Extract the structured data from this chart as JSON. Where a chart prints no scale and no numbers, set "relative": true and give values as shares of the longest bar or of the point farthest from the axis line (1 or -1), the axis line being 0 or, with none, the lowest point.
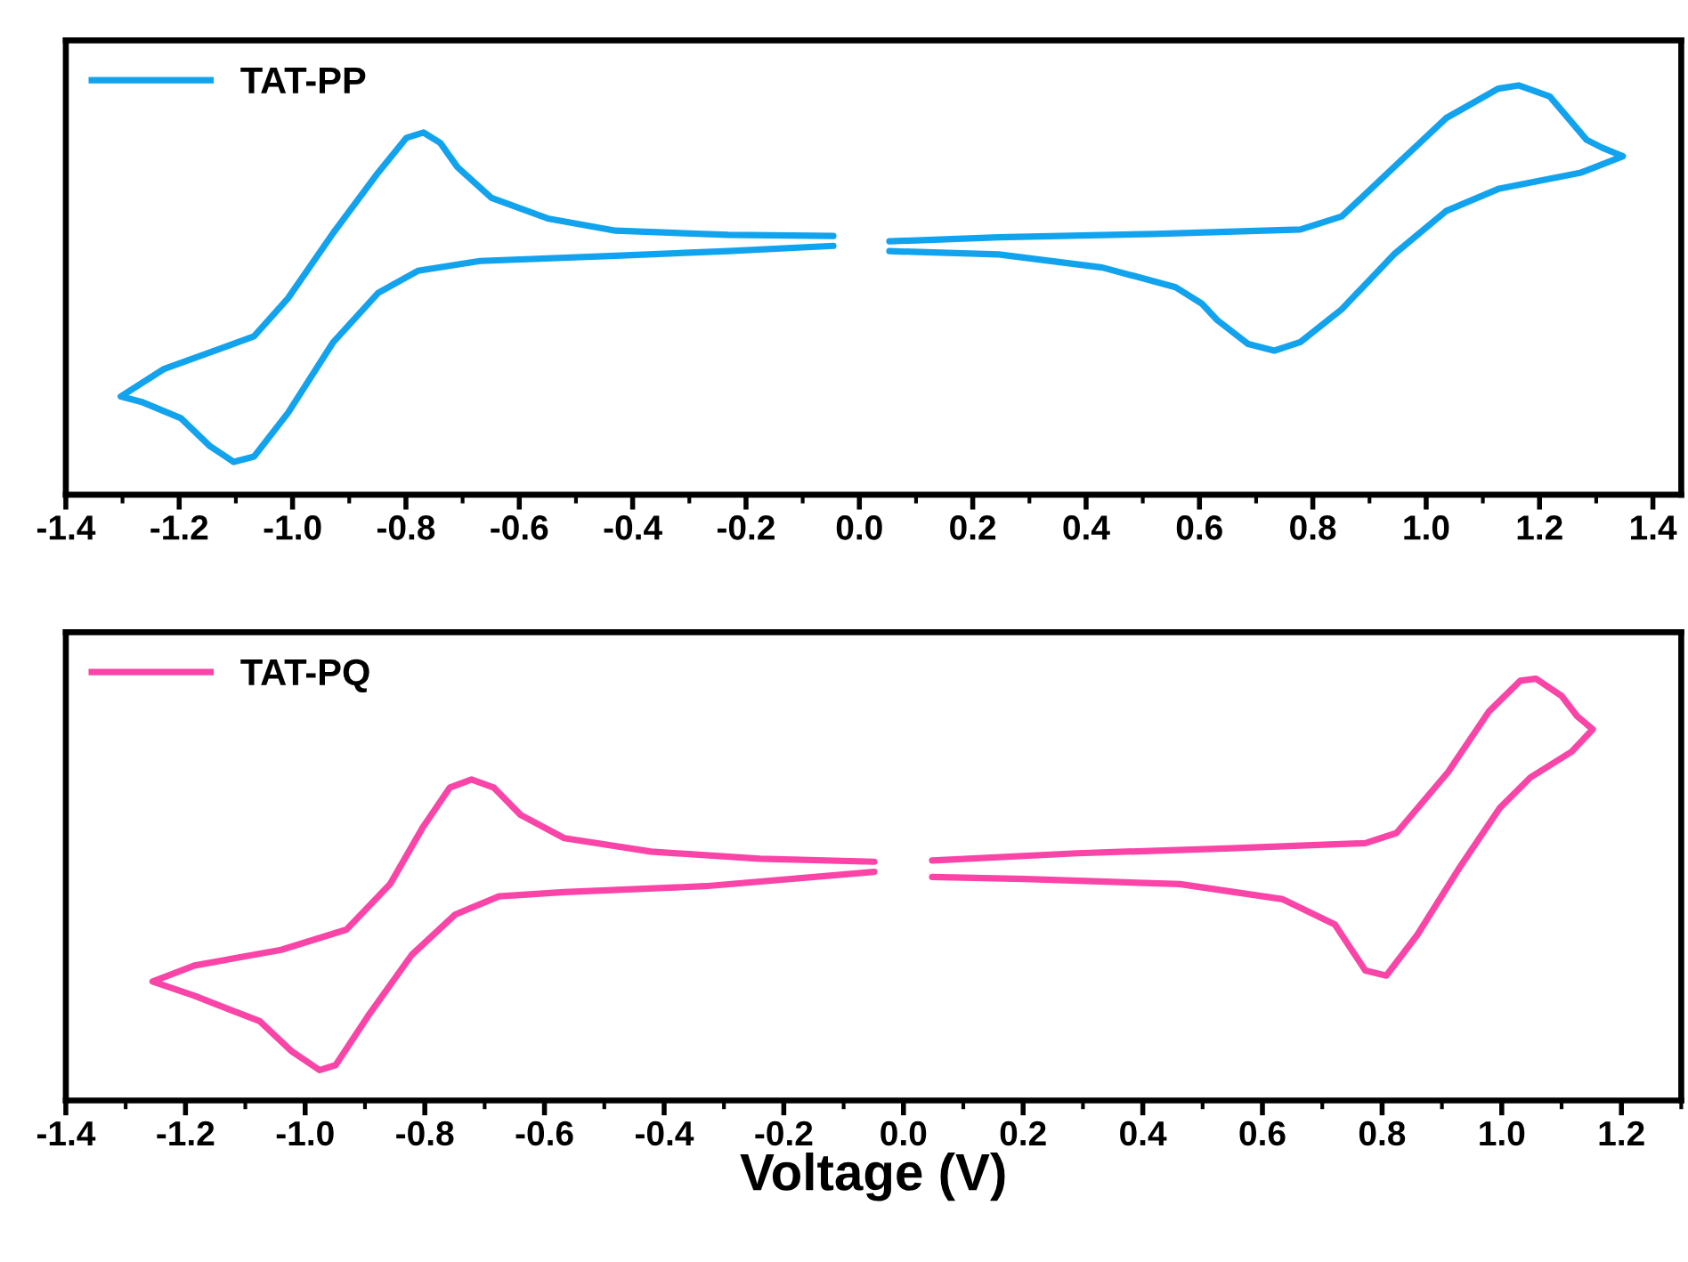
{
  "chart_data": [
    {
      "type": "line",
      "relative": true,
      "legend": "top left",
      "grid": false,
      "tick_labels": "x",
      "xlim": [
        -1.4,
        1.45
      ],
      "xticks": [
        -1.4,
        -1.2,
        {
          "value": -1,
          "label": "-1.0"
        },
        -0.8,
        -0.6,
        -0.4,
        -0.2,
        {
          "value": 0,
          "label": "0.0"
        },
        0.2,
        0.4,
        0.6,
        0.8,
        {
          "value": 1,
          "label": "1.0"
        },
        1.2,
        1.4
      ],
      "series": [
        {
          "name": "TAT-PP",
          "color": "#12a3ee",
          "x": [
            -0.046,
            -0.231,
            -0.43,
            -0.55,
            -0.649,
            -0.709,
            -0.739,
            -0.769,
            -0.799,
            -0.849,
            -0.928,
            -1.008,
            -1.068,
            -1.127,
            -1.227,
            -1.303,
            -1.267,
            -1.197,
            -1.147,
            -1.104,
            -1.068,
            -1.008,
            -0.928,
            -0.849,
            -0.779,
            -0.669,
            -0.43,
            -0.231,
            -0.046,
            0.0,
            0.053,
            0.246,
            0.521,
            0.778,
            0.851,
            0.943,
            1.035,
            1.127,
            1.163,
            1.218,
            1.283,
            1.31,
            1.347,
            1.273,
            1.127,
            1.035,
            0.943,
            0.851,
            0.778,
            0.732,
            0.686,
            0.631,
            0.604,
            0.558,
            0.429,
            0.246,
            0.053
          ],
          "values": [
            0.632,
            0.635,
            0.645,
            0.675,
            0.725,
            0.8,
            0.859,
            0.885,
            0.872,
            0.787,
            0.64,
            0.48,
            0.387,
            0.357,
            0.307,
            0.24,
            0.227,
            0.187,
            0.12,
            0.08,
            0.093,
            0.2,
            0.373,
            0.493,
            0.547,
            0.571,
            0.584,
            0.595,
            0.608,
            null,
            0.619,
            0.629,
            0.637,
            0.648,
            0.68,
            0.8,
            0.92,
            0.992,
            1.0,
            0.973,
            0.867,
            0.848,
            0.827,
            0.787,
            0.747,
            0.693,
            0.587,
            0.453,
            0.373,
            0.352,
            0.368,
            0.427,
            0.467,
            0.507,
            0.555,
            0.587,
            0.595
          ]
        }
      ]
    },
    {
      "type": "line",
      "relative": true,
      "legend": "top left",
      "grid": false,
      "tick_labels": "x",
      "xlabel": "Voltage (V)",
      "xlim": [
        -1.4,
        1.3
      ],
      "xticks": [
        -1.4,
        -1.2,
        {
          "value": -1,
          "label": "-1.0"
        },
        -0.8,
        -0.6,
        -0.4,
        -0.2,
        {
          "value": 0,
          "label": "0.0"
        },
        0.2,
        0.4,
        0.6,
        0.8,
        {
          "value": 1,
          "label": "1.0"
        },
        1.2
      ],
      "series": [
        {
          "name": "TAT-PQ",
          "color": "#fb44a8",
          "x": [
            -0.049,
            -0.24,
            -0.422,
            -0.567,
            -0.64,
            -0.685,
            -0.722,
            -0.758,
            -0.804,
            -0.858,
            -0.931,
            -1.04,
            -1.185,
            -1.255,
            -1.185,
            -1.076,
            -1.022,
            -0.976,
            -0.949,
            -0.895,
            -0.822,
            -0.749,
            -0.676,
            -0.567,
            -0.331,
            -0.049,
            0.0,
            0.048,
            0.29,
            0.548,
            0.772,
            0.824,
            0.91,
            0.979,
            1.031,
            1.057,
            1.1,
            1.126,
            1.152,
            1.117,
            1.048,
            0.997,
            0.928,
            0.859,
            0.807,
            0.772,
            0.721,
            0.634,
            0.462,
            0.203,
            0.048
          ],
          "values": [
            0.566,
            0.573,
            0.59,
            0.622,
            0.677,
            0.742,
            0.761,
            0.742,
            0.646,
            0.513,
            0.405,
            0.357,
            0.32,
            0.282,
            0.248,
            0.188,
            0.116,
            0.072,
            0.084,
            0.2,
            0.345,
            0.441,
            0.484,
            0.494,
            0.508,
            0.542,
            null,
            0.569,
            0.586,
            0.598,
            0.61,
            0.634,
            0.778,
            0.923,
            0.995,
            1.0,
            0.959,
            0.911,
            0.88,
            0.827,
            0.766,
            0.694,
            0.549,
            0.393,
            0.296,
            0.308,
            0.417,
            0.477,
            0.513,
            0.525,
            0.53
          ]
        }
      ]
    }
  ]
}
